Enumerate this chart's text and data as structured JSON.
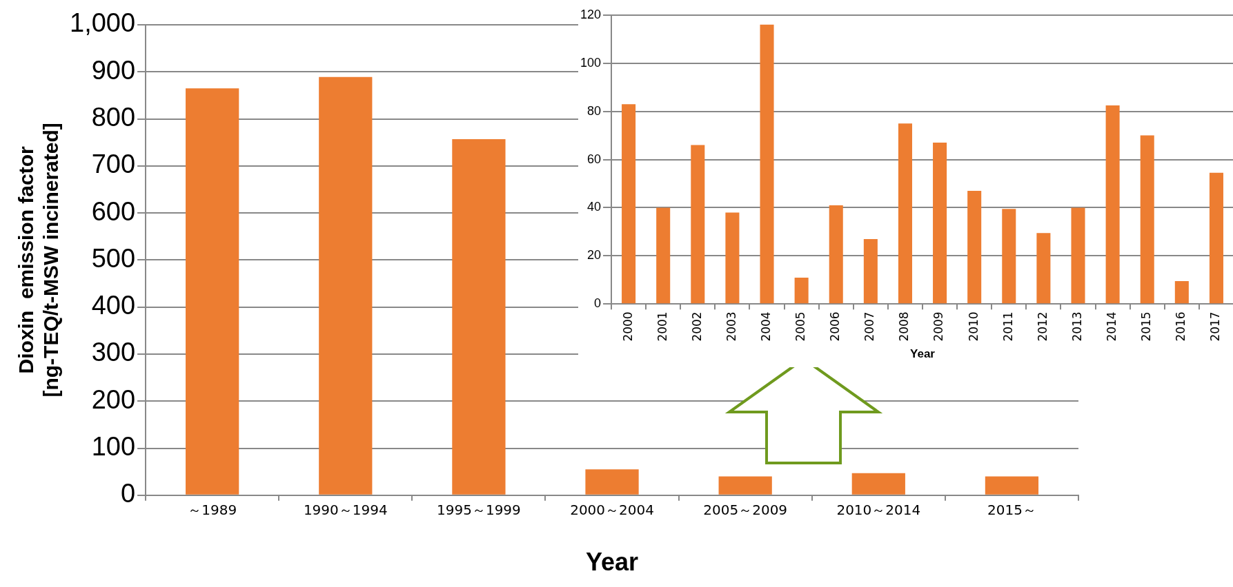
{
  "chart_data": [
    {
      "type": "bar",
      "xlabel": "Year",
      "ylabel": "Dioxin  emission factor\n[ng-TEQ/t-MSW incinerated]",
      "categories": [
        "～1989",
        "1990～1994",
        "1995～1999",
        "2000～2004",
        "2005～2009",
        "2010～2014",
        "2015～"
      ],
      "values": [
        865,
        889,
        757,
        55,
        40,
        47,
        40
      ],
      "color": "#ed7d31",
      "ylim": [
        0,
        1000
      ],
      "yticks": [
        0,
        100,
        200,
        300,
        400,
        500,
        600,
        700,
        800,
        900,
        {
          "value": 1000,
          "label": "1,000"
        }
      ],
      "grid": "y"
    },
    {
      "type": "bar",
      "xlabel": "Year",
      "categories": [
        "2000",
        "2001",
        "2002",
        "2003",
        "2004",
        "2005",
        "2006",
        "2007",
        "2008",
        "2009",
        "2010",
        "2011",
        "2012",
        "2013",
        "2014",
        "2015",
        "2016",
        "2017"
      ],
      "values": [
        83,
        40,
        66,
        38,
        116,
        11,
        41,
        27,
        75,
        67,
        47,
        39.5,
        29.5,
        40,
        82.5,
        70,
        9.5,
        54.5
      ],
      "color": "#ed7d31",
      "ylim": [
        0,
        120
      ],
      "yticks": [
        0,
        20,
        40,
        60,
        80,
        100,
        120
      ],
      "grid": "y"
    }
  ]
}
